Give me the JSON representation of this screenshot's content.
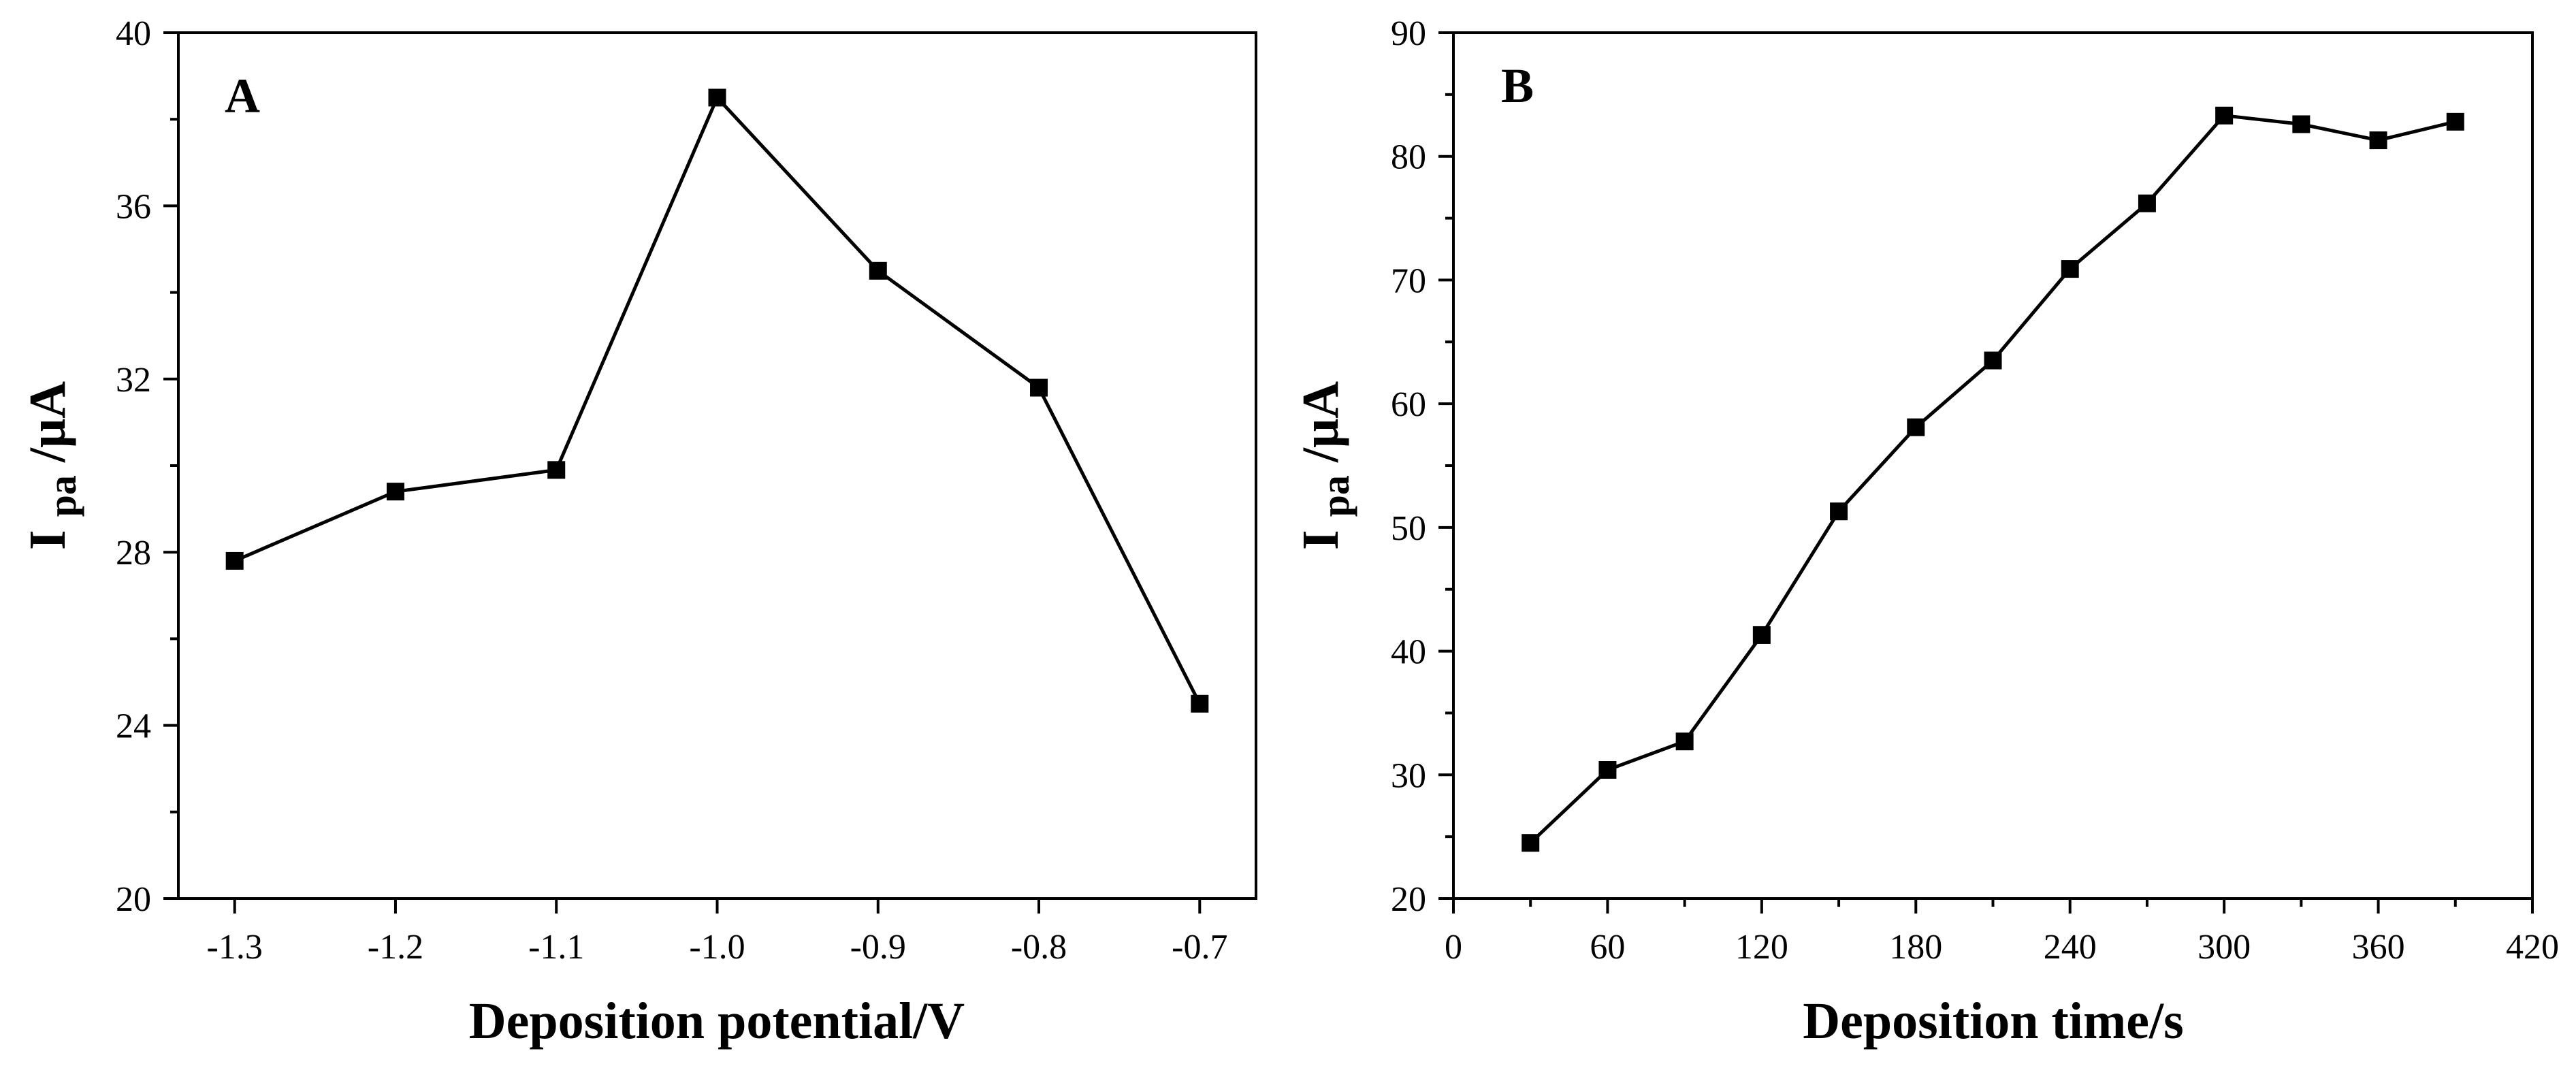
{
  "chart_data": [
    {
      "type": "line",
      "panel_label": "A",
      "xlabel": "Deposition potential/V",
      "ylabel_main": "I",
      "ylabel_sub": "pa",
      "ylabel_unit": "/μA",
      "xlim": [
        -1.335,
        -0.665
      ],
      "ylim": [
        20,
        40
      ],
      "xticks": [
        -1.3,
        -1.2,
        -1.1,
        -1.0,
        -0.9,
        -0.8,
        -0.7
      ],
      "xtick_labels": [
        "-1.3",
        "-1.2",
        "-1.1",
        "-1.0",
        "-0.9",
        "-0.8",
        "-0.7"
      ],
      "yticks": [
        20,
        24,
        28,
        32,
        36,
        40
      ],
      "ytick_labels": [
        "20",
        "24",
        "28",
        "32",
        "36",
        "40"
      ],
      "yminor_step": 2,
      "x": [
        -1.3,
        -1.2,
        -1.1,
        -1.0,
        -0.9,
        -0.8,
        -0.7
      ],
      "y": [
        27.8,
        29.4,
        29.9,
        38.5,
        34.5,
        31.8,
        24.5
      ],
      "marker": "square",
      "color": "#000000"
    },
    {
      "type": "line",
      "panel_label": "B",
      "xlabel": "Deposition time/s",
      "ylabel_main": "I",
      "ylabel_sub": "pa",
      "ylabel_unit": "/μA",
      "xlim": [
        0,
        420
      ],
      "ylim": [
        20,
        90
      ],
      "xticks": [
        0,
        60,
        120,
        180,
        240,
        300,
        360,
        420
      ],
      "xtick_labels": [
        "0",
        "60",
        "120",
        "180",
        "240",
        "300",
        "360",
        "420"
      ],
      "yticks": [
        20,
        30,
        40,
        50,
        60,
        70,
        80,
        90
      ],
      "ytick_labels": [
        "20",
        "30",
        "40",
        "50",
        "60",
        "70",
        "80",
        "90"
      ],
      "yminor_step": 5,
      "xminor_step": 30,
      "x": [
        30,
        60,
        90,
        120,
        150,
        180,
        210,
        240,
        270,
        300,
        330,
        360,
        390
      ],
      "y": [
        24.5,
        30.4,
        32.7,
        41.3,
        51.3,
        58.1,
        63.5,
        70.9,
        76.2,
        83.3,
        82.6,
        81.3,
        82.8
      ],
      "marker": "square",
      "color": "#000000"
    }
  ]
}
